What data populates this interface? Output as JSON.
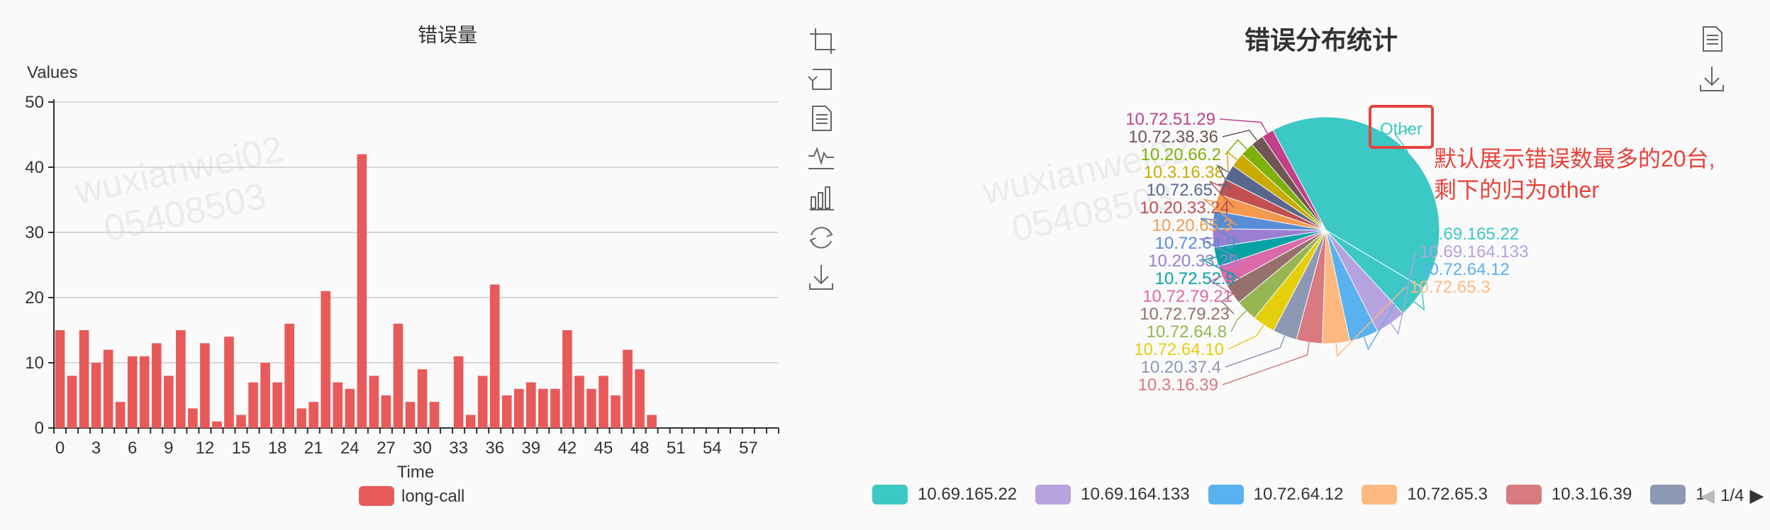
{
  "watermark": {
    "line1": "wuxianwei02",
    "line2": "05408503"
  },
  "bar_chart": {
    "title": "错误量",
    "legend_label": "long-call",
    "toolbox_icons": [
      "zoom-icon",
      "zoom-reset-icon",
      "data-view-icon",
      "line-switch-icon",
      "bar-switch-icon",
      "restore-icon",
      "save-image-icon"
    ]
  },
  "pie_chart": {
    "title": "错误分布统计",
    "annotation": "默认展示错误数最多的20台,\n剩下的归为other",
    "other_label": "Other",
    "toolbox_icons": [
      "data-view-icon",
      "save-image-icon"
    ],
    "legend": {
      "items": [
        "10.69.165.22",
        "10.69.164.133",
        "10.72.64.12",
        "10.72.65.3",
        "10.3.16.39",
        "10.2"
      ],
      "page": "1/4"
    }
  },
  "chart_data": [
    {
      "type": "bar",
      "title": "错误量",
      "xlabel": "Time",
      "ylabel": "Values",
      "ylim": [
        0,
        50
      ],
      "yticks": [
        0,
        10,
        20,
        30,
        40,
        50
      ],
      "xtick_labels": [
        "0",
        "3",
        "6",
        "9",
        "12",
        "15",
        "18",
        "21",
        "24",
        "27",
        "30",
        "33",
        "36",
        "39",
        "42",
        "45",
        "48",
        "51",
        "54",
        "57"
      ],
      "x": [
        0,
        1,
        2,
        3,
        4,
        5,
        6,
        7,
        8,
        9,
        10,
        11,
        12,
        13,
        14,
        15,
        16,
        17,
        18,
        19,
        20,
        21,
        22,
        23,
        24,
        25,
        26,
        27,
        28,
        29,
        30,
        31,
        32,
        33,
        34,
        35,
        36,
        37,
        38,
        39,
        40,
        41,
        42,
        43,
        44,
        45,
        46,
        47,
        48,
        49,
        50,
        51,
        52,
        53,
        54,
        55,
        56,
        57,
        58,
        59
      ],
      "series": [
        {
          "name": "long-call",
          "color": "#e85a5a",
          "values": [
            15,
            8,
            15,
            10,
            12,
            4,
            11,
            11,
            13,
            8,
            15,
            3,
            13,
            1,
            14,
            2,
            7,
            10,
            7,
            16,
            3,
            4,
            21,
            7,
            6,
            42,
            8,
            5,
            16,
            4,
            9,
            4,
            0,
            11,
            2,
            8,
            22,
            5,
            6,
            7,
            6,
            6,
            15,
            8,
            6,
            8,
            5,
            12,
            9,
            2,
            0,
            0,
            0,
            0,
            0,
            0,
            0,
            0,
            0,
            0
          ]
        }
      ],
      "grid": true,
      "legend_position": "bottom"
    },
    {
      "type": "pie",
      "title": "错误分布统计",
      "slices": [
        {
          "label": "Other",
          "value": 36,
          "color": "#3cc8c4"
        },
        {
          "label": "10.69.165.22",
          "value": 4.0,
          "color": "#3cc8c4"
        },
        {
          "label": "10.69.164.133",
          "value": 3.8,
          "color": "#b6a2de"
        },
        {
          "label": "10.72.64.12",
          "value": 3.6,
          "color": "#5ab1ef"
        },
        {
          "label": "10.72.65.3",
          "value": 3.4,
          "color": "#ffb980"
        },
        {
          "label": "10.3.16.39",
          "value": 3.2,
          "color": "#d87a80"
        },
        {
          "label": "10.20.37.4",
          "value": 3.0,
          "color": "#8d98b3"
        },
        {
          "label": "10.72.64.10",
          "value": 2.8,
          "color": "#e5cf0d"
        },
        {
          "label": "10.72.64.8",
          "value": 2.7,
          "color": "#97b552"
        },
        {
          "label": "10.72.79.23",
          "value": 2.6,
          "color": "#95706d"
        },
        {
          "label": "10.72.79.21",
          "value": 2.5,
          "color": "#dc69aa"
        },
        {
          "label": "10.72.52.9",
          "value": 2.4,
          "color": "#07a2a4"
        },
        {
          "label": "10.20.33.25",
          "value": 2.3,
          "color": "#9a7fd1"
        },
        {
          "label": "10.72.64.9",
          "value": 2.2,
          "color": "#588dd5"
        },
        {
          "label": "10.20.65.3",
          "value": 2.1,
          "color": "#f5994e"
        },
        {
          "label": "10.20.33.24",
          "value": 2.0,
          "color": "#c05050"
        },
        {
          "label": "10.72.65.7",
          "value": 1.9,
          "color": "#59678c"
        },
        {
          "label": "10.3.16.38",
          "value": 1.8,
          "color": "#c9ab00"
        },
        {
          "label": "10.20.66.2",
          "value": 1.7,
          "color": "#7eb00a"
        },
        {
          "label": "10.72.38.36",
          "value": 1.6,
          "color": "#6f5553"
        },
        {
          "label": "10.72.51.29",
          "value": 1.5,
          "color": "#c14089"
        }
      ],
      "legend_position": "bottom"
    }
  ]
}
